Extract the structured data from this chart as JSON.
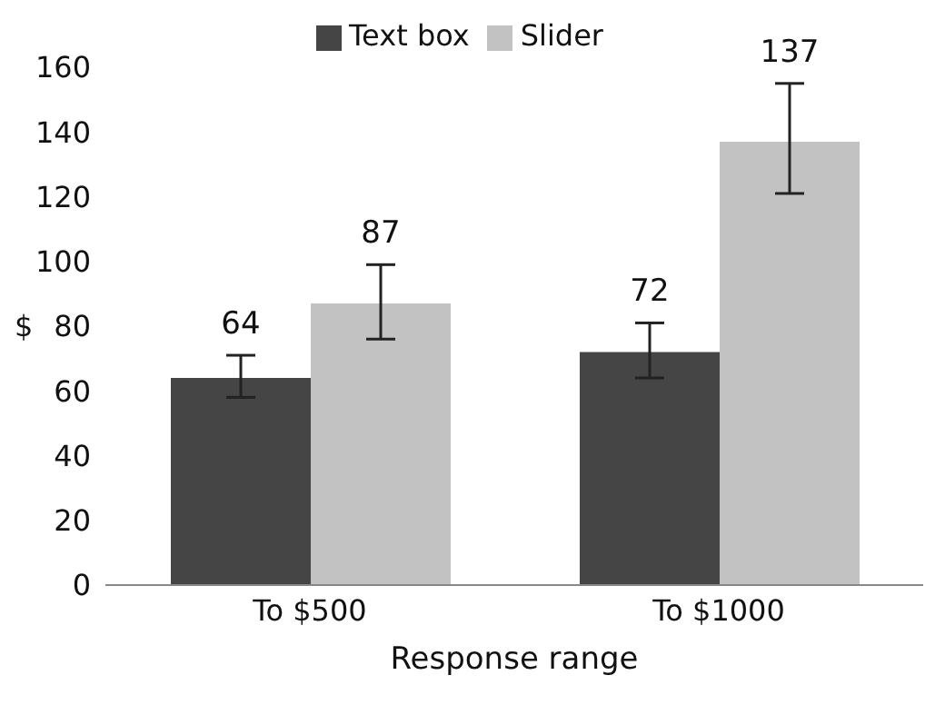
{
  "chart_data": {
    "type": "bar",
    "xlabel": "Response range",
    "ylabel": "$",
    "categories": [
      "To $500",
      "To $1000"
    ],
    "series": [
      {
        "name": "Text box",
        "color": "#454545",
        "values": [
          64,
          72
        ],
        "errors": [
          [
            58,
            71
          ],
          [
            64,
            81
          ]
        ]
      },
      {
        "name": "Slider",
        "color": "#c2c2c2",
        "values": [
          87,
          137
        ],
        "errors": [
          [
            76,
            99
          ],
          [
            121,
            155
          ]
        ]
      }
    ],
    "ylim": [
      0,
      160
    ],
    "yticks": [
      0,
      20,
      40,
      60,
      80,
      100,
      120,
      140,
      160
    ],
    "grid": false,
    "legend": "top",
    "data_labels": true
  }
}
